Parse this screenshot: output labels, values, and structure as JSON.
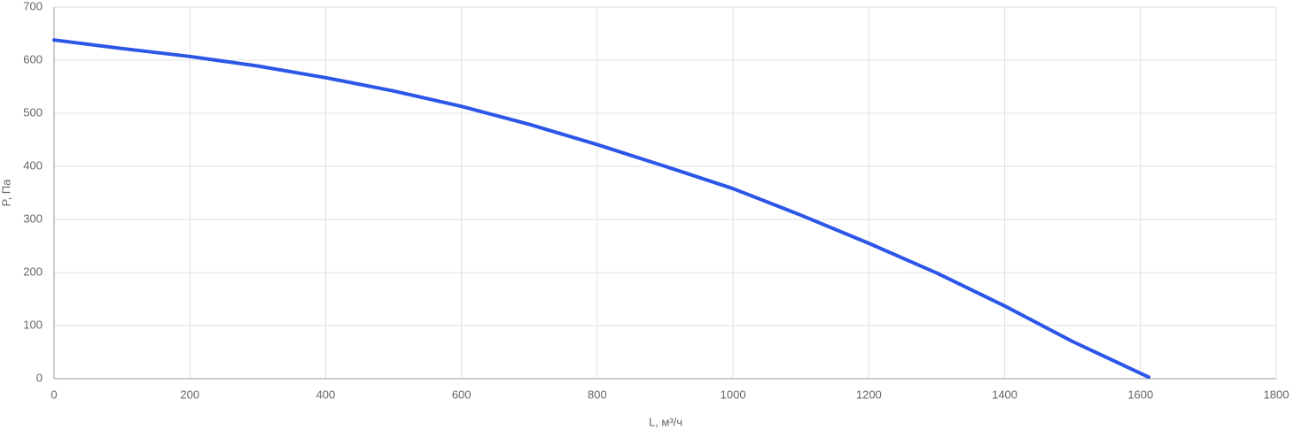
{
  "chart_data": {
    "type": "line",
    "x_label": "L, м³/ч",
    "y_label": "P, Па",
    "x": [
      0,
      100,
      200,
      300,
      400,
      500,
      600,
      700,
      800,
      900,
      1000,
      1100,
      1200,
      1300,
      1400,
      1500,
      1612
    ],
    "series": [
      {
        "color": "#2b56e8",
        "values": [
          638,
          622,
          607,
          589,
          567,
          542,
          513,
          479,
          441,
          400,
          358,
          308,
          255,
          199,
          137,
          70,
          3
        ]
      }
    ],
    "xlim": [
      0,
      1800
    ],
    "xticks": [
      0,
      200,
      400,
      600,
      800,
      1000,
      1200,
      1400,
      1600,
      1800
    ],
    "ylim": [
      0,
      700
    ],
    "yticks": [
      0,
      100,
      200,
      300,
      400,
      500,
      600,
      700
    ],
    "grid": true
  }
}
